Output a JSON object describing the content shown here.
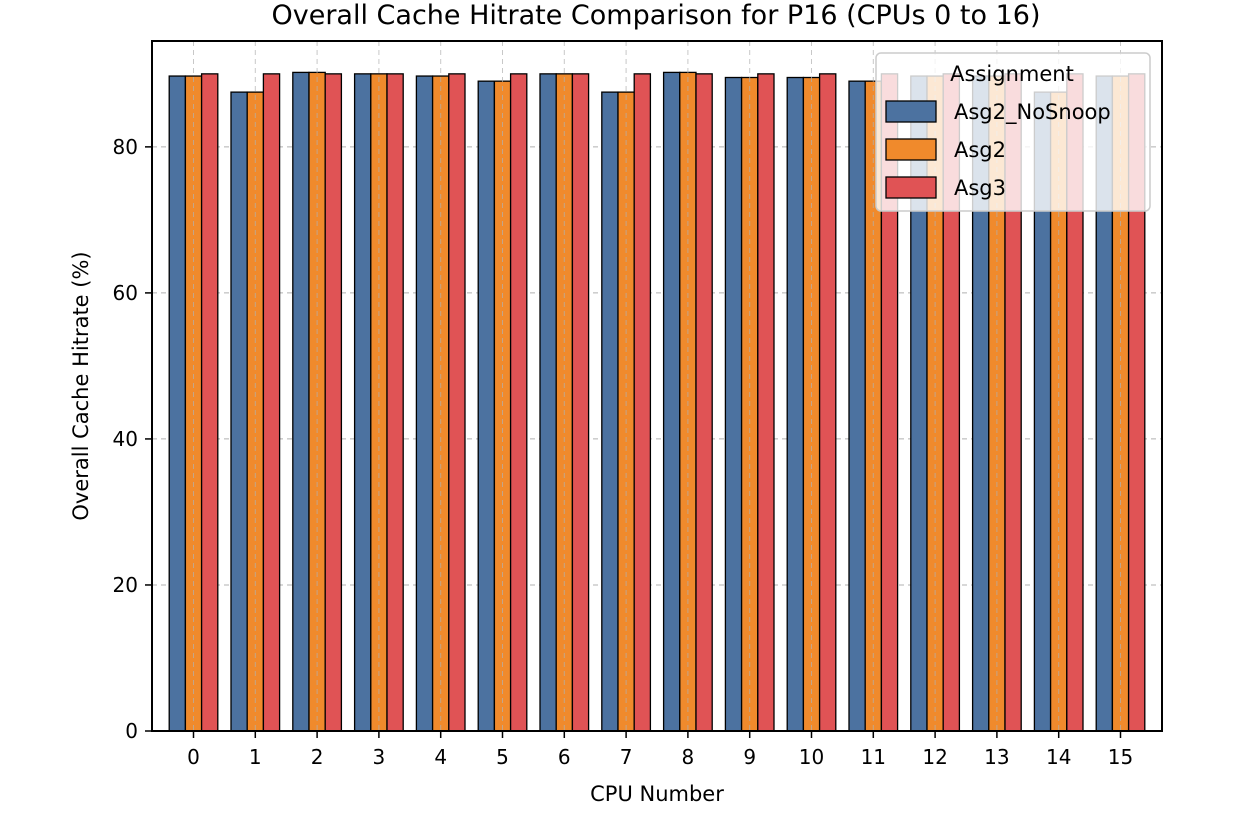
{
  "chart_data": {
    "type": "bar",
    "title": "Overall Cache Hitrate Comparison for P16 (CPUs 0 to 16)",
    "xlabel": "CPU Number",
    "ylabel": "Overall Cache Hitrate (%)",
    "categories": [
      "0",
      "1",
      "2",
      "3",
      "4",
      "5",
      "6",
      "7",
      "8",
      "9",
      "10",
      "11",
      "12",
      "13",
      "14",
      "15"
    ],
    "ylim": [
      0,
      94.5
    ],
    "yticks": [
      0,
      20,
      40,
      60,
      80
    ],
    "grid": true,
    "legend": {
      "title": "Assignment",
      "position": "top-right"
    },
    "series": [
      {
        "name": "Asg2_NoSnoop",
        "color": "#4c72a0",
        "values": [
          89.7,
          87.5,
          90.2,
          90.0,
          89.7,
          89.0,
          90.0,
          87.5,
          90.2,
          89.5,
          89.5,
          89.0,
          89.7,
          89.7,
          87.5,
          89.7
        ]
      },
      {
        "name": "Asg2",
        "color": "#f08a2c",
        "values": [
          89.7,
          87.5,
          90.2,
          90.0,
          89.7,
          89.0,
          90.0,
          87.5,
          90.2,
          89.5,
          89.5,
          89.0,
          89.7,
          89.7,
          87.5,
          89.7
        ]
      },
      {
        "name": "Asg3",
        "color": "#e05355",
        "values": [
          90.0,
          90.0,
          90.0,
          90.0,
          90.0,
          90.0,
          90.0,
          90.0,
          90.0,
          90.0,
          90.0,
          90.0,
          90.0,
          90.0,
          90.0,
          90.0
        ]
      }
    ]
  }
}
